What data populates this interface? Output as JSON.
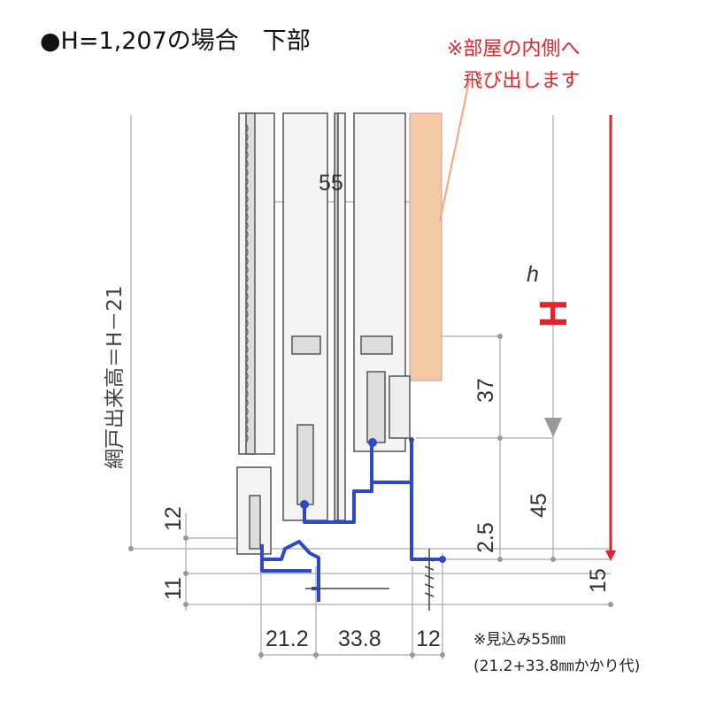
{
  "title": "●H=1,207の場合　下部",
  "note": {
    "line1": "※部屋の内側へ",
    "line2": "飛び出します"
  },
  "footnote": {
    "line1": "※見込み55㎜",
    "line2": "(21.2+33.8㎜かかり代)"
  },
  "labels": {
    "screen_height": "網戸出来高＝H－21",
    "d55": "55",
    "d37": "37",
    "d45": "45",
    "d2_5": "2.5",
    "d15": "15",
    "d12_left": "12",
    "d11": "11",
    "d21_2": "21.2",
    "d33_8": "33.8",
    "d12_bottom": "12",
    "h": "h",
    "H": "H"
  },
  "colors": {
    "frame": "#2d48c8",
    "accent": "#e0262a",
    "wood": "#f4c9a5",
    "leader": "#f2a77a",
    "dim": "#b8b8b8"
  }
}
